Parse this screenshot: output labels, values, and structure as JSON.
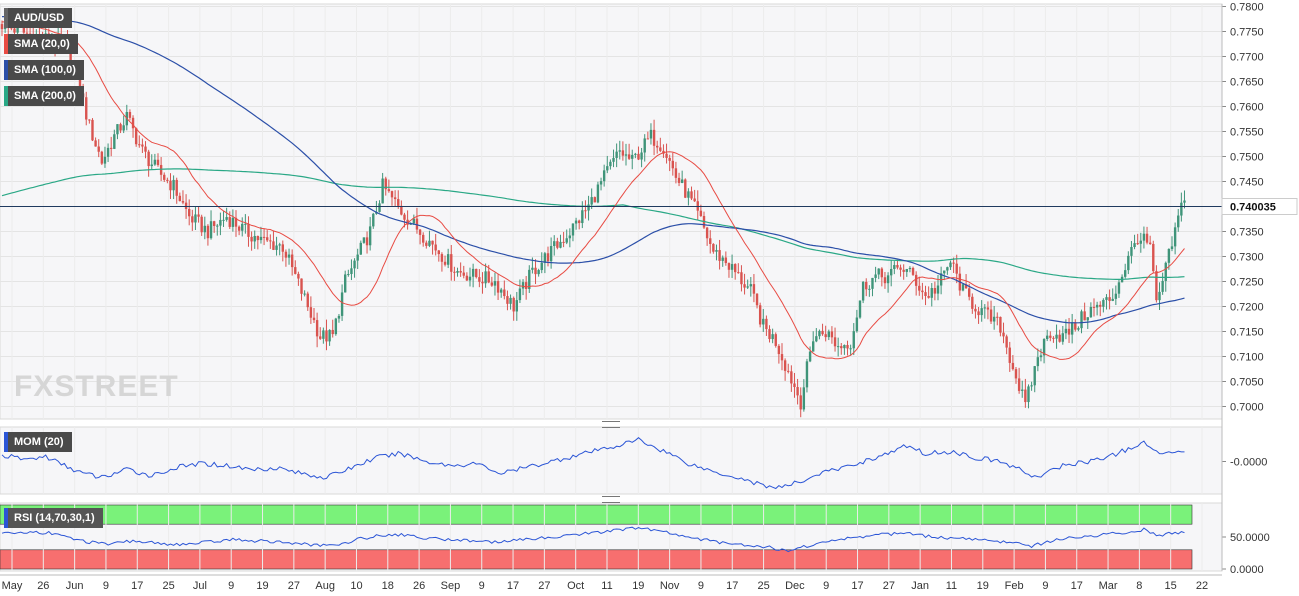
{
  "chart_data": {
    "type": "candlestick",
    "instrument": "AUD/USD",
    "indicators": [
      "SMA (20,0)",
      "SMA (100,0)",
      "SMA (200,0)"
    ],
    "last_price": 0.74,
    "last_price_label": "0.740035",
    "ylim": [
      0.6975,
      0.7805
    ],
    "y_ticks": [
      0.78,
      0.775,
      0.77,
      0.765,
      0.76,
      0.755,
      0.75,
      0.745,
      0.735,
      0.73,
      0.725,
      0.72,
      0.715,
      0.71,
      0.705,
      0.7
    ],
    "x_tick_labels": [
      "May",
      "26",
      "Jun",
      "9",
      "17",
      "25",
      "Jul",
      "9",
      "19",
      "27",
      "Aug",
      "10",
      "18",
      "26",
      "Sep",
      "9",
      "17",
      "27",
      "Oct",
      "11",
      "19",
      "Nov",
      "9",
      "17",
      "25",
      "Dec",
      "9",
      "17",
      "27",
      "Jan",
      "11",
      "19",
      "Feb",
      "9",
      "17",
      "Mar",
      "8",
      "15",
      "22"
    ],
    "close_path": [
      [
        0,
        0.7765
      ],
      [
        8,
        0.7745
      ],
      [
        14,
        0.7735
      ],
      [
        20,
        0.772
      ],
      [
        24,
        0.766
      ],
      [
        28,
        0.756
      ],
      [
        32,
        0.749
      ],
      [
        36,
        0.754
      ],
      [
        40,
        0.758
      ],
      [
        45,
        0.751
      ],
      [
        50,
        0.747
      ],
      [
        55,
        0.744
      ],
      [
        60,
        0.738
      ],
      [
        66,
        0.735
      ],
      [
        72,
        0.738
      ],
      [
        78,
        0.735
      ],
      [
        84,
        0.733
      ],
      [
        90,
        0.732
      ],
      [
        96,
        0.723
      ],
      [
        102,
        0.714
      ],
      [
        106,
        0.714
      ],
      [
        110,
        0.725
      ],
      [
        114,
        0.73
      ],
      [
        118,
        0.735
      ],
      [
        122,
        0.744
      ],
      [
        128,
        0.739
      ],
      [
        134,
        0.735
      ],
      [
        140,
        0.731
      ],
      [
        146,
        0.727
      ],
      [
        152,
        0.726
      ],
      [
        158,
        0.725
      ],
      [
        164,
        0.72
      ],
      [
        170,
        0.727
      ],
      [
        176,
        0.731
      ],
      [
        182,
        0.735
      ],
      [
        188,
        0.74
      ],
      [
        194,
        0.747
      ],
      [
        198,
        0.751
      ],
      [
        202,
        0.749
      ],
      [
        208,
        0.754
      ],
      [
        212,
        0.752
      ],
      [
        216,
        0.746
      ],
      [
        220,
        0.742
      ],
      [
        224,
        0.737
      ],
      [
        228,
        0.731
      ],
      [
        232,
        0.729
      ],
      [
        236,
        0.726
      ],
      [
        240,
        0.723
      ],
      [
        244,
        0.716
      ],
      [
        248,
        0.713
      ],
      [
        252,
        0.707
      ],
      [
        256,
        0.701
      ],
      [
        260,
        0.714
      ],
      [
        264,
        0.715
      ],
      [
        268,
        0.712
      ],
      [
        272,
        0.713
      ],
      [
        276,
        0.724
      ],
      [
        280,
        0.726
      ],
      [
        284,
        0.726
      ],
      [
        288,
        0.728
      ],
      [
        292,
        0.726
      ],
      [
        296,
        0.722
      ],
      [
        300,
        0.724
      ],
      [
        304,
        0.729
      ],
      [
        308,
        0.723
      ],
      [
        312,
        0.72
      ],
      [
        316,
        0.718
      ],
      [
        320,
        0.716
      ],
      [
        324,
        0.708
      ],
      [
        328,
        0.7
      ],
      [
        332,
        0.71
      ],
      [
        336,
        0.715
      ],
      [
        340,
        0.714
      ],
      [
        344,
        0.716
      ],
      [
        348,
        0.719
      ],
      [
        352,
        0.72
      ],
      [
        356,
        0.722
      ],
      [
        360,
        0.728
      ],
      [
        364,
        0.734
      ],
      [
        368,
        0.732
      ],
      [
        370,
        0.72
      ],
      [
        374,
        0.73
      ],
      [
        378,
        0.74
      ]
    ],
    "momentum": {
      "label": "MOM (20)",
      "tick_label": "-0.0000",
      "path": [
        [
          0,
          0.3
        ],
        [
          8,
          0.1
        ],
        [
          14,
          0.25
        ],
        [
          20,
          -0.2
        ],
        [
          26,
          -0.6
        ],
        [
          32,
          -0.8
        ],
        [
          40,
          -0.4
        ],
        [
          48,
          -0.7
        ],
        [
          56,
          -0.3
        ],
        [
          64,
          -0.1
        ],
        [
          72,
          -0.2
        ],
        [
          80,
          -0.4
        ],
        [
          88,
          -0.3
        ],
        [
          96,
          -0.6
        ],
        [
          104,
          -0.8
        ],
        [
          112,
          -0.3
        ],
        [
          120,
          0.2
        ],
        [
          128,
          0.4
        ],
        [
          136,
          0.0
        ],
        [
          144,
          -0.2
        ],
        [
          152,
          -0.1
        ],
        [
          160,
          -0.6
        ],
        [
          168,
          -0.3
        ],
        [
          176,
          0.0
        ],
        [
          184,
          0.3
        ],
        [
          192,
          0.6
        ],
        [
          200,
          0.9
        ],
        [
          204,
          1.1
        ],
        [
          208,
          0.8
        ],
        [
          214,
          0.4
        ],
        [
          220,
          -0.1
        ],
        [
          228,
          -0.5
        ],
        [
          236,
          -0.8
        ],
        [
          244,
          -1.2
        ],
        [
          250,
          -1.3
        ],
        [
          256,
          -1.0
        ],
        [
          262,
          -0.6
        ],
        [
          270,
          -0.3
        ],
        [
          278,
          0.1
        ],
        [
          286,
          0.5
        ],
        [
          290,
          0.8
        ],
        [
          296,
          0.4
        ],
        [
          304,
          0.5
        ],
        [
          312,
          0.2
        ],
        [
          320,
          0.0
        ],
        [
          326,
          -0.4
        ],
        [
          332,
          -0.8
        ],
        [
          340,
          -0.2
        ],
        [
          348,
          0.0
        ],
        [
          356,
          0.3
        ],
        [
          362,
          0.7
        ],
        [
          366,
          0.9
        ],
        [
          370,
          0.5
        ],
        [
          374,
          0.4
        ],
        [
          378,
          0.6
        ]
      ]
    },
    "rsi": {
      "label": "RSI (14,70,30,1)",
      "ticks": [
        50,
        0
      ],
      "tick_labels": [
        "50.0000",
        "0.0000"
      ],
      "overbought": 70,
      "oversold": 30,
      "path": [
        [
          0,
          55
        ],
        [
          10,
          58
        ],
        [
          16,
          56
        ],
        [
          22,
          48
        ],
        [
          28,
          42
        ],
        [
          34,
          38
        ],
        [
          42,
          44
        ],
        [
          50,
          40
        ],
        [
          58,
          38
        ],
        [
          66,
          42
        ],
        [
          74,
          46
        ],
        [
          82,
          44
        ],
        [
          90,
          42
        ],
        [
          98,
          38
        ],
        [
          106,
          36
        ],
        [
          112,
          44
        ],
        [
          120,
          52
        ],
        [
          128,
          54
        ],
        [
          136,
          48
        ],
        [
          144,
          46
        ],
        [
          152,
          44
        ],
        [
          160,
          42
        ],
        [
          168,
          46
        ],
        [
          176,
          50
        ],
        [
          184,
          54
        ],
        [
          192,
          58
        ],
        [
          200,
          62
        ],
        [
          204,
          64
        ],
        [
          210,
          60
        ],
        [
          216,
          54
        ],
        [
          222,
          48
        ],
        [
          230,
          42
        ],
        [
          238,
          38
        ],
        [
          246,
          34
        ],
        [
          252,
          28
        ],
        [
          258,
          36
        ],
        [
          266,
          44
        ],
        [
          274,
          50
        ],
        [
          282,
          54
        ],
        [
          290,
          56
        ],
        [
          298,
          50
        ],
        [
          306,
          48
        ],
        [
          314,
          46
        ],
        [
          322,
          42
        ],
        [
          330,
          36
        ],
        [
          338,
          46
        ],
        [
          346,
          50
        ],
        [
          354,
          54
        ],
        [
          362,
          58
        ],
        [
          366,
          62
        ],
        [
          370,
          52
        ],
        [
          374,
          55
        ],
        [
          378,
          58
        ]
      ]
    },
    "logo_text": "FXSTREET",
    "colors": {
      "up": "#3f9479",
      "down": "#d9534f",
      "sma20": "#e84b43",
      "sma100": "#2b4fa8",
      "sma200": "#2aa886",
      "momentum": "#2b55d6",
      "rsi": "#2b55d6",
      "overbought": "#7af27a",
      "oversold": "#f76f6f",
      "price_line": "#1f3a5f"
    }
  }
}
